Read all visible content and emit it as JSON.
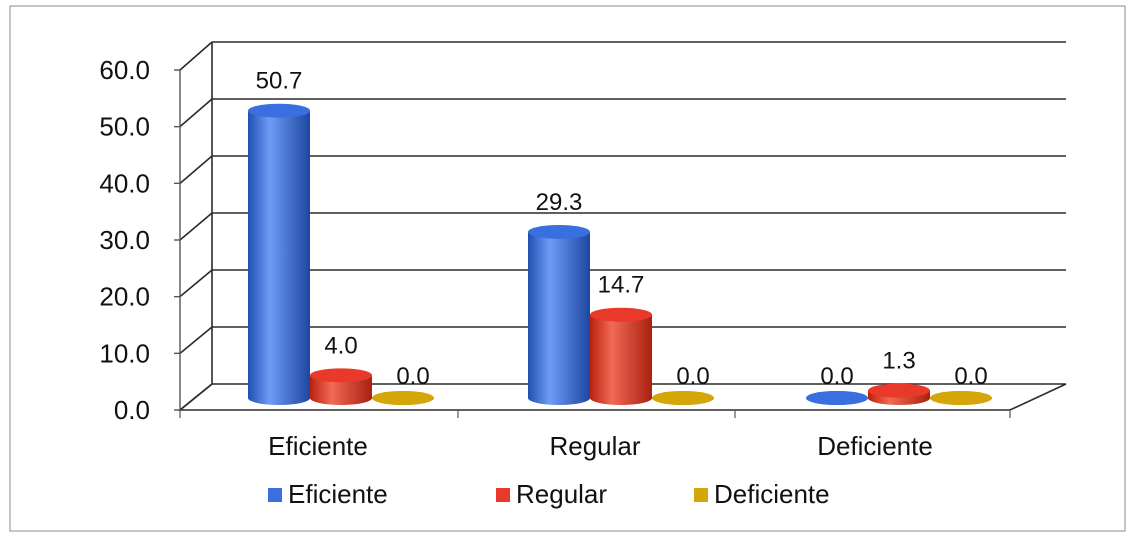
{
  "chart_data": {
    "type": "bar",
    "categories": [
      "Eficiente",
      "Regular",
      "Deficiente"
    ],
    "series": [
      {
        "name": "Eficiente",
        "values": [
          50.7,
          29.3,
          0.0
        ],
        "color": "#3A6FE0"
      },
      {
        "name": "Regular",
        "values": [
          4.0,
          14.7,
          1.3
        ],
        "color": "#E8392A"
      },
      {
        "name": "Deficiente",
        "values": [
          0.0,
          0.0,
          0.0
        ],
        "color": "#D4A60A"
      }
    ],
    "y_ticks": [
      "0.0",
      "10.0",
      "20.0",
      "30.0",
      "40.0",
      "50.0",
      "60.0"
    ],
    "ylim": [
      0,
      60
    ],
    "grid": true,
    "legend_position": "bottom",
    "bar_style": "3d-cylinder"
  }
}
